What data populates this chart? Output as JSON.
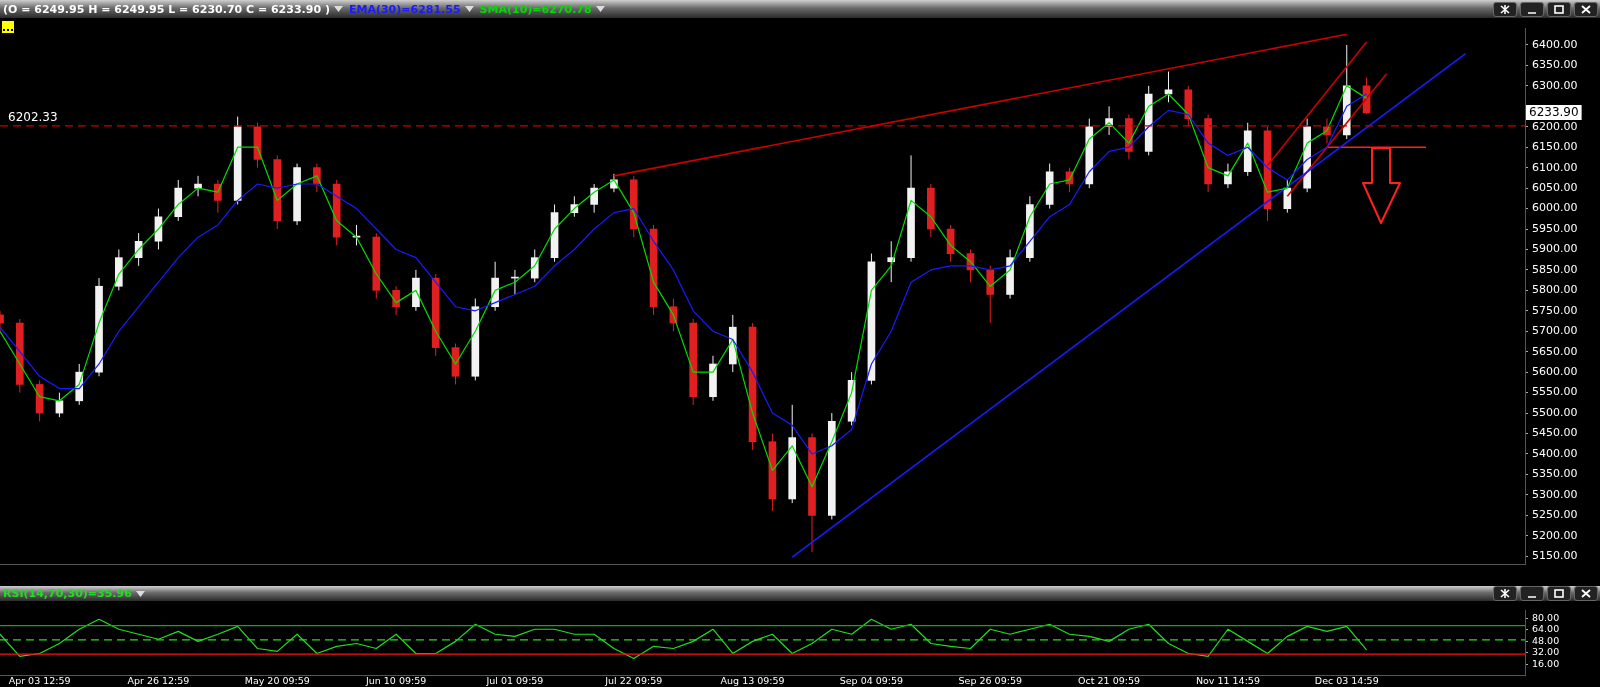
{
  "chart_data": [
    {
      "type": "candlestick",
      "subtitle": "(O = 6249.95 H = 6249.95 L = 6230.70 C = 6233.90 )",
      "legend": "top left",
      "marker": "none",
      "tick_labels": "y",
      "categories": [
        null,
        null,
        null,
        null,
        null,
        null,
        null,
        null,
        null,
        null,
        null,
        null,
        null,
        null,
        null,
        null,
        null,
        null,
        null,
        null,
        null,
        null,
        null,
        null,
        null,
        null,
        null,
        null,
        null,
        null,
        null,
        null,
        null,
        null,
        null,
        null,
        null,
        null,
        null,
        null,
        null,
        null,
        null,
        null,
        null,
        null,
        null,
        null,
        null,
        null,
        null,
        null,
        null,
        null,
        null,
        null,
        null,
        null,
        null,
        null,
        null,
        null,
        null,
        null,
        null,
        null,
        null,
        null,
        null,
        null,
        null,
        null,
        null,
        null,
        null,
        null,
        null,
        null
      ],
      "ohlc": [
        [
          5740,
          5750,
          5700,
          5720
        ],
        [
          5720,
          5730,
          5550,
          5570
        ],
        [
          5570,
          5580,
          5480,
          5500
        ],
        [
          5500,
          5550,
          5490,
          5530
        ],
        [
          5530,
          5620,
          5520,
          5600
        ],
        [
          5600,
          5830,
          5590,
          5810
        ],
        [
          5810,
          5900,
          5800,
          5880
        ],
        [
          5880,
          5940,
          5860,
          5920
        ],
        [
          5920,
          6000,
          5900,
          5980
        ],
        [
          5980,
          6070,
          5970,
          6050
        ],
        [
          6050,
          6080,
          6030,
          6060
        ],
        [
          6060,
          6070,
          5990,
          6020
        ],
        [
          6020,
          6225,
          6010,
          6200
        ],
        [
          6200,
          6210,
          6100,
          6120
        ],
        [
          6120,
          6130,
          5950,
          5970
        ],
        [
          5970,
          6110,
          5960,
          6100
        ],
        [
          6100,
          6110,
          6040,
          6060
        ],
        [
          6060,
          6070,
          5910,
          5930
        ],
        [
          5930,
          5960,
          5910,
          5930
        ],
        [
          5930,
          5940,
          5780,
          5800
        ],
        [
          5800,
          5810,
          5740,
          5760
        ],
        [
          5760,
          5850,
          5750,
          5830
        ],
        [
          5830,
          5840,
          5640,
          5660
        ],
        [
          5660,
          5670,
          5570,
          5590
        ],
        [
          5590,
          5780,
          5580,
          5760
        ],
        [
          5760,
          5870,
          5750,
          5830
        ],
        [
          5830,
          5850,
          5790,
          5830
        ],
        [
          5830,
          5900,
          5820,
          5880
        ],
        [
          5880,
          6010,
          5870,
          5990
        ],
        [
          5990,
          6030,
          5980,
          6010
        ],
        [
          6010,
          6060,
          5990,
          6050
        ],
        [
          6050,
          6085,
          6040,
          6070
        ],
        [
          6070,
          6080,
          5930,
          5950
        ],
        [
          5950,
          5960,
          5740,
          5760
        ],
        [
          5760,
          5780,
          5700,
          5720
        ],
        [
          5720,
          5730,
          5520,
          5540
        ],
        [
          5540,
          5640,
          5530,
          5620
        ],
        [
          5620,
          5740,
          5600,
          5710
        ],
        [
          5710,
          5720,
          5410,
          5430
        ],
        [
          5430,
          5450,
          5260,
          5290
        ],
        [
          5290,
          5520,
          5280,
          5440
        ],
        [
          5440,
          5450,
          5160,
          5250
        ],
        [
          5250,
          5500,
          5240,
          5480
        ],
        [
          5480,
          5600,
          5470,
          5580
        ],
        [
          5580,
          5890,
          5570,
          5870
        ],
        [
          5870,
          5920,
          5820,
          5880
        ],
        [
          5880,
          6130,
          5870,
          6050
        ],
        [
          6050,
          6060,
          5930,
          5950
        ],
        [
          5950,
          5960,
          5870,
          5890
        ],
        [
          5890,
          5900,
          5820,
          5850
        ],
        [
          5850,
          5860,
          5720,
          5790
        ],
        [
          5790,
          5900,
          5780,
          5880
        ],
        [
          5880,
          6030,
          5870,
          6010
        ],
        [
          6010,
          6110,
          6000,
          6090
        ],
        [
          6090,
          6100,
          6040,
          6060
        ],
        [
          6060,
          6220,
          6050,
          6200
        ],
        [
          6200,
          6250,
          6180,
          6220
        ],
        [
          6220,
          6230,
          6120,
          6140
        ],
        [
          6140,
          6300,
          6130,
          6280
        ],
        [
          6280,
          6335,
          6260,
          6290
        ],
        [
          6290,
          6300,
          6200,
          6220
        ],
        [
          6220,
          6230,
          6040,
          6060
        ],
        [
          6060,
          6110,
          6050,
          6090
        ],
        [
          6090,
          6210,
          6080,
          6190
        ],
        [
          6190,
          6200,
          5970,
          6000
        ],
        [
          6000,
          6070,
          5990,
          6050
        ],
        [
          6050,
          6220,
          6040,
          6200
        ],
        [
          6200,
          6220,
          6160,
          6180
        ],
        [
          6180,
          6400,
          6170,
          6300
        ],
        [
          6300,
          6320,
          6230.7,
          6233.9
        ],
        null,
        null,
        null,
        null,
        null,
        null,
        null,
        null
      ],
      "colors": [
        "#e02020",
        "#e02020",
        "#e02020",
        "#f2f2f2",
        "#f2f2f2",
        "#f2f2f2",
        "#f2f2f2",
        "#f2f2f2",
        "#f2f2f2",
        "#f2f2f2",
        "#f2f2f2",
        "#e02020",
        "#f2f2f2",
        "#e02020",
        "#e02020",
        "#f2f2f2",
        "#e02020",
        "#e02020",
        "#f2f2f2",
        "#e02020",
        "#e02020",
        "#f2f2f2",
        "#e02020",
        "#e02020",
        "#f2f2f2",
        "#f2f2f2",
        "#f2f2f2",
        "#f2f2f2",
        "#f2f2f2",
        "#f2f2f2",
        "#f2f2f2",
        "#f2f2f2",
        "#e02020",
        "#e02020",
        "#e02020",
        "#e02020",
        "#f2f2f2",
        "#f2f2f2",
        "#e02020",
        "#e02020",
        "#f2f2f2",
        "#e02020",
        "#f2f2f2",
        "#f2f2f2",
        "#f2f2f2",
        "#f2f2f2",
        "#f2f2f2",
        "#e02020",
        "#e02020",
        "#e02020",
        "#e02020",
        "#f2f2f2",
        "#f2f2f2",
        "#f2f2f2",
        "#e02020",
        "#f2f2f2",
        "#f2f2f2",
        "#e02020",
        "#f2f2f2",
        "#f2f2f2",
        "#e02020",
        "#e02020",
        "#f2f2f2",
        "#f2f2f2",
        "#e02020",
        "#f2f2f2",
        "#f2f2f2",
        "#e02020",
        "#f2f2f2",
        "#e02020",
        null,
        null,
        null,
        null,
        null,
        null,
        null,
        null
      ],
      "series": [
        {
          "type": "line",
          "name": "EMA(30)=6281.55",
          "color": "#1a1aff",
          "values": [
            5710,
            5650,
            5590,
            5560,
            5560,
            5620,
            5700,
            5760,
            5820,
            5880,
            5930,
            5960,
            6020,
            6060,
            6050,
            6060,
            6060,
            6030,
            6000,
            5950,
            5900,
            5880,
            5820,
            5760,
            5750,
            5770,
            5790,
            5810,
            5860,
            5900,
            5950,
            5990,
            6000,
            5920,
            5850,
            5750,
            5700,
            5680,
            5600,
            5500,
            5470,
            5400,
            5420,
            5460,
            5620,
            5700,
            5820,
            5850,
            5860,
            5860,
            5850,
            5860,
            5920,
            5980,
            6010,
            6090,
            6140,
            6150,
            6200,
            6240,
            6230,
            6160,
            6130,
            6150,
            6100,
            6070,
            6120,
            6150,
            6250,
            6280,
            null,
            null,
            null,
            null,
            null,
            null,
            null,
            null
          ]
        },
        {
          "type": "line",
          "name": "SMA(10)=6270.78",
          "color": "#00dd00",
          "values": [
            5700,
            5620,
            5540,
            5530,
            5570,
            5720,
            5840,
            5900,
            5950,
            6010,
            6050,
            6040,
            6150,
            6150,
            6020,
            6060,
            6080,
            5970,
            5930,
            5840,
            5770,
            5800,
            5700,
            5620,
            5700,
            5800,
            5820,
            5860,
            5950,
            6000,
            6040,
            6070,
            5990,
            5820,
            5740,
            5600,
            5600,
            5680,
            5500,
            5360,
            5420,
            5320,
            5430,
            5550,
            5800,
            5860,
            6020,
            5980,
            5910,
            5870,
            5810,
            5850,
            5980,
            6060,
            6070,
            6170,
            6210,
            6160,
            6250,
            6280,
            6230,
            6100,
            6080,
            6160,
            6040,
            6050,
            6160,
            6190,
            6300,
            6270,
            null,
            null,
            null,
            null,
            null,
            null,
            null,
            null
          ]
        },
        {
          "type": "line",
          "color": "#cc0000",
          "values": [
            null,
            null,
            null,
            null,
            null,
            null,
            null,
            null,
            null,
            null,
            null,
            null,
            null,
            null,
            null,
            null,
            null,
            null,
            null,
            null,
            null,
            null,
            null,
            null,
            null,
            null,
            null,
            null,
            null,
            null,
            null,
            6080,
            null,
            null,
            null,
            null,
            null,
            null,
            null,
            null,
            null,
            null,
            null,
            null,
            null,
            null,
            null,
            null,
            null,
            null,
            null,
            null,
            null,
            null,
            null,
            null,
            null,
            null,
            null,
            null,
            null,
            null,
            null,
            null,
            null,
            null,
            null,
            null,
            6426,
            null,
            null,
            null,
            null,
            null,
            null,
            null,
            null,
            null
          ]
        },
        {
          "type": "line",
          "color": "#1a1aff",
          "values": [
            null,
            null,
            null,
            null,
            null,
            null,
            null,
            null,
            null,
            null,
            null,
            null,
            null,
            null,
            null,
            null,
            null,
            null,
            null,
            null,
            null,
            null,
            null,
            null,
            null,
            null,
            null,
            null,
            null,
            null,
            null,
            null,
            null,
            null,
            null,
            null,
            null,
            null,
            null,
            null,
            5148,
            null,
            null,
            null,
            null,
            null,
            null,
            null,
            null,
            null,
            null,
            null,
            null,
            null,
            null,
            null,
            null,
            null,
            null,
            null,
            null,
            null,
            null,
            null,
            null,
            null,
            null,
            null,
            null,
            null,
            null,
            null,
            null,
            null,
            6379,
            null,
            null,
            null
          ]
        },
        {
          "type": "line",
          "color": "#cc0000",
          "values": [
            null,
            null,
            null,
            null,
            null,
            null,
            null,
            null,
            null,
            null,
            null,
            null,
            null,
            null,
            null,
            null,
            null,
            null,
            null,
            null,
            null,
            null,
            null,
            null,
            null,
            null,
            null,
            null,
            null,
            null,
            null,
            null,
            null,
            null,
            null,
            null,
            null,
            null,
            null,
            null,
            null,
            null,
            null,
            null,
            null,
            null,
            null,
            null,
            null,
            null,
            null,
            null,
            null,
            null,
            null,
            null,
            null,
            null,
            null,
            null,
            null,
            null,
            null,
            null,
            6105,
            null,
            null,
            null,
            null,
            6407,
            null,
            null,
            null,
            null,
            null,
            null,
            null,
            null
          ]
        },
        {
          "type": "line",
          "color": "#cc0000",
          "values": [
            null,
            null,
            null,
            null,
            null,
            null,
            null,
            null,
            null,
            null,
            null,
            null,
            null,
            null,
            null,
            null,
            null,
            null,
            null,
            null,
            null,
            null,
            null,
            null,
            null,
            null,
            null,
            null,
            null,
            null,
            null,
            null,
            null,
            null,
            null,
            null,
            null,
            null,
            null,
            null,
            null,
            null,
            null,
            null,
            null,
            null,
            null,
            null,
            null,
            null,
            null,
            null,
            null,
            null,
            null,
            null,
            null,
            null,
            null,
            null,
            null,
            null,
            null,
            null,
            null,
            6030,
            null,
            null,
            null,
            null,
            6329,
            null,
            null,
            null,
            null,
            null,
            null,
            null
          ]
        },
        {
          "type": "line",
          "color": "#ff2020",
          "values": [
            null,
            null,
            null,
            null,
            null,
            null,
            null,
            null,
            null,
            null,
            null,
            null,
            null,
            null,
            null,
            null,
            null,
            null,
            null,
            null,
            null,
            null,
            null,
            null,
            null,
            null,
            null,
            null,
            null,
            null,
            null,
            null,
            null,
            null,
            null,
            null,
            null,
            null,
            null,
            null,
            null,
            null,
            null,
            null,
            null,
            null,
            null,
            null,
            null,
            null,
            null,
            null,
            null,
            null,
            null,
            null,
            null,
            null,
            null,
            null,
            null,
            null,
            null,
            null,
            null,
            null,
            null,
            6150,
            null,
            null,
            null,
            null,
            6150,
            null,
            null,
            null,
            null,
            null
          ]
        }
      ],
      "ylim": [
        5130,
        6440
      ],
      "yticks": [
        {
          "value": 5150,
          "label": "5150.00"
        },
        {
          "value": 5200,
          "label": "5200.00"
        },
        {
          "value": 5250,
          "label": "5250.00"
        },
        {
          "value": 5300,
          "label": "5300.00"
        },
        {
          "value": 5350,
          "label": "5350.00"
        },
        {
          "value": 5400,
          "label": "5400.00"
        },
        {
          "value": 5450,
          "label": "5450.00"
        },
        {
          "value": 5500,
          "label": "5500.00"
        },
        {
          "value": 5550,
          "label": "5550.00"
        },
        {
          "value": 5600,
          "label": "5600.00"
        },
        {
          "value": 5650,
          "label": "5650.00"
        },
        {
          "value": 5700,
          "label": "5700.00"
        },
        {
          "value": 5750,
          "label": "5750.00"
        },
        {
          "value": 5800,
          "label": "5800.00"
        },
        {
          "value": 5850,
          "label": "5850.00"
        },
        {
          "value": 5900,
          "label": "5900.00"
        },
        {
          "value": 5950,
          "label": "5950.00"
        },
        {
          "value": 6000,
          "label": "6000.00"
        },
        {
          "value": 6050,
          "label": "6050.00"
        },
        {
          "value": 6100,
          "label": "6100.00"
        },
        {
          "value": 6150,
          "label": "6150.00"
        },
        {
          "value": 6200,
          "label": "6200.00"
        },
        {
          "value": 6250,
          "label": null
        },
        {
          "value": 6300,
          "label": "6300.00"
        },
        {
          "value": 6350,
          "label": "6350.00"
        },
        {
          "value": 6400,
          "label": "6400.00"
        }
      ],
      "ref_lines": [
        {
          "axis": "y",
          "value": 6202.33,
          "label": "6202.33",
          "color": "#cc0000",
          "line_style": "dashed"
        }
      ],
      "annotations": [
        "6233.90"
      ]
    },
    {
      "type": "line",
      "legend": "top left",
      "marker": "none",
      "categories": [
        null,
        null,
        "Apr 03 12:59",
        null,
        null,
        null,
        null,
        null,
        "Apr 26 12:59",
        null,
        null,
        null,
        null,
        null,
        "May 20 09:59",
        null,
        null,
        null,
        null,
        null,
        "Jun 10 09:59",
        null,
        null,
        null,
        null,
        null,
        "Jul 01 09:59",
        null,
        null,
        null,
        null,
        null,
        "Jul 22 09:59",
        null,
        null,
        null,
        null,
        null,
        "Aug 13 09:59",
        null,
        null,
        null,
        null,
        null,
        "Sep 04 09:59",
        null,
        null,
        null,
        null,
        null,
        "Sep 26 09:59",
        null,
        null,
        null,
        null,
        null,
        "Oct 21 09:59",
        null,
        null,
        null,
        null,
        null,
        "Nov 11 14:59",
        null,
        null,
        null,
        null,
        null,
        "Dec 03 14:59",
        null,
        null,
        null,
        null,
        null,
        null,
        null,
        null,
        null
      ],
      "series": [
        {
          "name": "RSI(14,70,30)=35.96",
          "color": "#22dd22",
          "values": [
            58,
            27,
            31,
            45,
            65,
            79,
            65,
            58,
            51,
            62,
            48,
            58,
            69,
            38,
            34,
            58,
            31,
            41,
            45,
            38,
            58,
            31,
            31,
            48,
            72,
            58,
            55,
            65,
            65,
            58,
            58,
            38,
            24,
            41,
            38,
            48,
            65,
            31,
            48,
            58,
            31,
            45,
            65,
            58,
            79,
            65,
            72,
            45,
            41,
            38,
            65,
            58,
            65,
            72,
            58,
            55,
            48,
            65,
            72,
            45,
            31,
            27,
            65,
            48,
            31,
            55,
            69,
            62,
            69,
            36,
            null,
            null,
            null,
            null,
            null,
            null,
            null,
            null
          ]
        }
      ],
      "ylim": [
        0,
        91
      ],
      "yticks": [
        {
          "value": 16,
          "label": "16.00"
        },
        {
          "value": 32,
          "label": "32.00"
        },
        {
          "value": 48,
          "label": "48.00"
        },
        {
          "value": 64,
          "label": "64.00"
        },
        {
          "value": 80,
          "label": "80.00"
        }
      ],
      "ref_lines": [
        {
          "axis": "y",
          "value": 70,
          "color": "#11aa11",
          "line_style": "solid"
        },
        {
          "axis": "y",
          "value": 50,
          "color": "#22dd22",
          "line_style": "dashed"
        },
        {
          "axis": "y",
          "value": 30,
          "color": "#ff1010",
          "line_style": "solid"
        }
      ]
    }
  ]
}
